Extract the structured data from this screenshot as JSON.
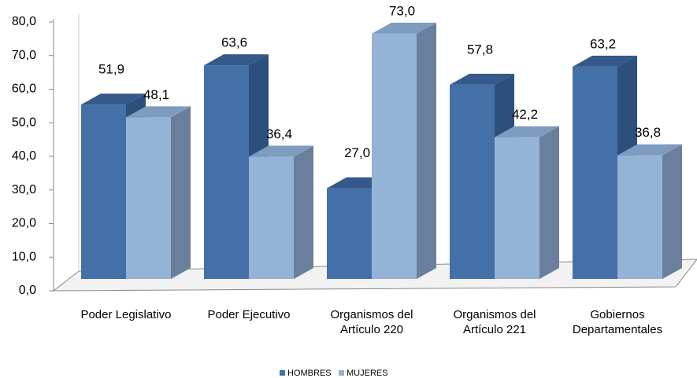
{
  "chart_data": {
    "type": "bar3d",
    "categories": [
      "Poder Legislativo",
      "Poder Ejecutivo",
      "Organismos del Artículo 220",
      "Organismos del Artículo 221",
      "Gobiernos Departamentales"
    ],
    "series": [
      {
        "name": "HOMBRES",
        "color": "#4470a8",
        "values": [
          51.9,
          63.6,
          27.0,
          57.8,
          63.2
        ],
        "value_labels": [
          "51,9",
          "63,6",
          "27,0",
          "57,8",
          "63,2"
        ]
      },
      {
        "name": "MUJERES",
        "color": "#95b3d7",
        "values": [
          48.1,
          36.4,
          73.0,
          42.2,
          36.8
        ],
        "value_labels": [
          "48,1",
          "36,4",
          "73,0",
          "42,2",
          "36,8"
        ]
      }
    ],
    "ylim": [
      0,
      80
    ],
    "yticks": [
      {
        "value": 0,
        "label": "0,0"
      },
      {
        "value": 10,
        "label": "10,0"
      },
      {
        "value": 20,
        "label": "20,0"
      },
      {
        "value": 30,
        "label": "30,0"
      },
      {
        "value": 40,
        "label": "40,0"
      },
      {
        "value": 50,
        "label": "50,0"
      },
      {
        "value": 60,
        "label": "60,0"
      },
      {
        "value": 70,
        "label": "70,0"
      },
      {
        "value": 80,
        "label": "80,0"
      }
    ],
    "legend": "bottom"
  }
}
